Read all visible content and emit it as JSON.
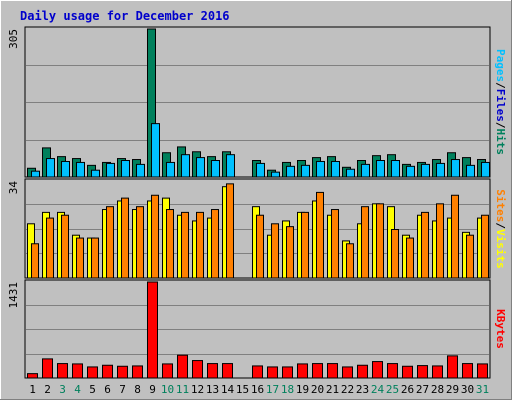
{
  "title": "Daily usage for December 2016",
  "colors": {
    "background": "#c0c0c0",
    "title": "#0000cc",
    "hits": "#00805c",
    "files": "#00c0ff",
    "pages": "#0080c0",
    "sites": "#ff8000",
    "visits": "#ffff00",
    "kbytes": "#ff0000",
    "weekend_label": "#00805c",
    "weekday_label": "#000000"
  },
  "chart_data": [
    {
      "type": "bar",
      "name": "hits-files-pages",
      "y_max_label": "305",
      "ylim": [
        0,
        305
      ],
      "legend_right": [
        {
          "text": "Pages",
          "color": "#00c0ff"
        },
        {
          "text": "/",
          "color": "#000000"
        },
        {
          "text": "Files",
          "color": "#0000cc"
        },
        {
          "text": "/",
          "color": "#000000"
        },
        {
          "text": "Hits",
          "color": "#00805c"
        }
      ],
      "categories": [
        "1",
        "2",
        "3",
        "4",
        "5",
        "6",
        "7",
        "8",
        "9",
        "10",
        "11",
        "12",
        "13",
        "14",
        "15",
        "16",
        "17",
        "18",
        "19",
        "20",
        "21",
        "22",
        "23",
        "24",
        "25",
        "26",
        "27",
        "28",
        "29",
        "30",
        "31"
      ],
      "series": [
        {
          "name": "Hits",
          "values": [
            18,
            60,
            42,
            38,
            24,
            30,
            38,
            36,
            305,
            50,
            62,
            52,
            42,
            52,
            0,
            34,
            14,
            30,
            34,
            40,
            42,
            20,
            34,
            44,
            46,
            26,
            30,
            36,
            50,
            40,
            36
          ]
        },
        {
          "name": "Files",
          "values": [
            12,
            38,
            32,
            30,
            14,
            28,
            34,
            26,
            110,
            30,
            46,
            40,
            34,
            46,
            0,
            28,
            10,
            22,
            24,
            32,
            32,
            16,
            26,
            34,
            34,
            22,
            26,
            28,
            36,
            24,
            30
          ]
        }
      ]
    },
    {
      "type": "bar",
      "name": "sites-visits",
      "y_max_label": "34",
      "ylim": [
        0,
        34
      ],
      "legend_right": [
        {
          "text": "Sites",
          "color": "#ff8000"
        },
        {
          "text": "/",
          "color": "#000000"
        },
        {
          "text": "Visits",
          "color": "#ffff00"
        }
      ],
      "categories": [
        "1",
        "2",
        "3",
        "4",
        "5",
        "6",
        "7",
        "8",
        "9",
        "10",
        "11",
        "12",
        "13",
        "14",
        "15",
        "16",
        "17",
        "18",
        "19",
        "20",
        "21",
        "22",
        "23",
        "24",
        "25",
        "26",
        "27",
        "28",
        "29",
        "30",
        "31"
      ],
      "series": [
        {
          "name": "Visits",
          "values": [
            19,
            23,
            23,
            15,
            14,
            24,
            27,
            24,
            27,
            28,
            22,
            20,
            21,
            32,
            0,
            25,
            15,
            20,
            23,
            27,
            22,
            13,
            19,
            26,
            25,
            15,
            22,
            20,
            21,
            16,
            21
          ]
        },
        {
          "name": "Sites",
          "values": [
            12,
            21,
            22,
            14,
            14,
            25,
            28,
            25,
            29,
            24,
            23,
            23,
            24,
            33,
            0,
            22,
            19,
            18,
            23,
            30,
            24,
            12,
            25,
            26,
            17,
            14,
            23,
            26,
            29,
            15,
            22
          ]
        }
      ]
    },
    {
      "type": "bar",
      "name": "kbytes",
      "y_max_label": "1431",
      "ylim": [
        0,
        1431
      ],
      "legend_right": [
        {
          "text": "KBytes",
          "color": "#ff0000"
        }
      ],
      "categories": [
        "1",
        "2",
        "3",
        "4",
        "5",
        "6",
        "7",
        "8",
        "9",
        "10",
        "11",
        "12",
        "13",
        "14",
        "15",
        "16",
        "17",
        "18",
        "19",
        "20",
        "21",
        "22",
        "23",
        "24",
        "25",
        "26",
        "27",
        "28",
        "29",
        "30",
        "31"
      ],
      "series": [
        {
          "name": "KBytes",
          "values": [
            65,
            285,
            215,
            210,
            165,
            190,
            175,
            180,
            1431,
            210,
            340,
            260,
            215,
            215,
            0,
            180,
            165,
            165,
            210,
            215,
            215,
            165,
            190,
            245,
            215,
            175,
            185,
            180,
            330,
            215,
            210
          ]
        }
      ]
    }
  ],
  "x_labels": [
    {
      "text": "1",
      "weekend": false
    },
    {
      "text": "2",
      "weekend": false
    },
    {
      "text": "3",
      "weekend": true
    },
    {
      "text": "4",
      "weekend": true
    },
    {
      "text": "5",
      "weekend": false
    },
    {
      "text": "6",
      "weekend": false
    },
    {
      "text": "7",
      "weekend": false
    },
    {
      "text": "8",
      "weekend": false
    },
    {
      "text": "9",
      "weekend": false
    },
    {
      "text": "10",
      "weekend": true
    },
    {
      "text": "11",
      "weekend": true
    },
    {
      "text": "12",
      "weekend": false
    },
    {
      "text": "13",
      "weekend": false
    },
    {
      "text": "14",
      "weekend": false
    },
    {
      "text": "15",
      "weekend": false
    },
    {
      "text": "16",
      "weekend": false
    },
    {
      "text": "17",
      "weekend": true
    },
    {
      "text": "18",
      "weekend": true
    },
    {
      "text": "19",
      "weekend": false
    },
    {
      "text": "20",
      "weekend": false
    },
    {
      "text": "21",
      "weekend": false
    },
    {
      "text": "22",
      "weekend": false
    },
    {
      "text": "23",
      "weekend": false
    },
    {
      "text": "24",
      "weekend": true
    },
    {
      "text": "25",
      "weekend": true
    },
    {
      "text": "26",
      "weekend": false
    },
    {
      "text": "27",
      "weekend": false
    },
    {
      "text": "28",
      "weekend": false
    },
    {
      "text": "29",
      "weekend": false
    },
    {
      "text": "30",
      "weekend": false
    },
    {
      "text": "31",
      "weekend": true
    }
  ]
}
